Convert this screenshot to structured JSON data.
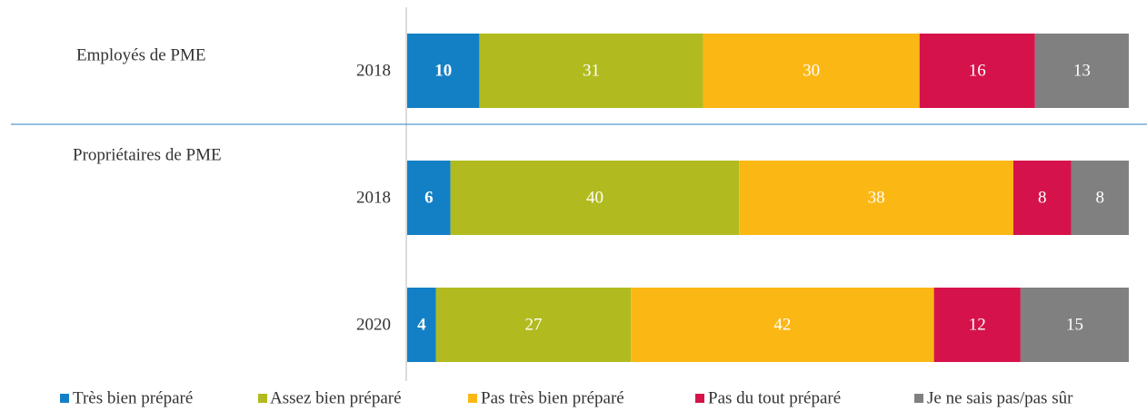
{
  "chart_data": {
    "type": "stacked-bar-horizontal",
    "groups": [
      "Employés de PME",
      "Propriétaires de PME"
    ],
    "categories": [
      "2018",
      "2018",
      "2020"
    ],
    "xlim": [
      0,
      100
    ],
    "series": [
      {
        "name": "Très bien préparé",
        "color": "#1380c6",
        "values": [
          10,
          6,
          4
        ]
      },
      {
        "name": "Assez bien préparé",
        "color": "#b1bb1f",
        "values": [
          31,
          40,
          27
        ]
      },
      {
        "name": "Pas très bien préparé",
        "color": "#fbb714",
        "values": [
          30,
          38,
          42
        ]
      },
      {
        "name": "Pas du tout préparé",
        "color": "#d5134a",
        "values": [
          16,
          8,
          12
        ]
      },
      {
        "name": "Je ne sais pas/pas sûr",
        "color": "#808080",
        "values": [
          13,
          8,
          15
        ]
      }
    ]
  }
}
